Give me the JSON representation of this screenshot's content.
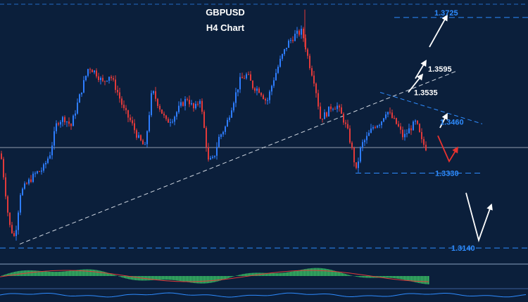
{
  "colors": {
    "background": "#0b1f3b",
    "bull_candle": "#2e7dff",
    "bear_candle": "#e23a3a",
    "level_line": "#2e8cff",
    "trendline": "#cfd6e0",
    "arrow_up_white": "#ffffff",
    "arrow_down_red": "#e8322f",
    "histogram_green": "#3fd46a"
  },
  "chart_data": {
    "type": "candlestick",
    "title": "GBPUSD",
    "subtitle": "H4 Chart",
    "ylim": [
      1.311,
      1.3755
    ],
    "levels": [
      {
        "label": "1.3725",
        "value": 1.3725,
        "style": "blue"
      },
      {
        "label": "1.3595",
        "value": 1.3595,
        "style": "white"
      },
      {
        "label": "1.3535",
        "value": 1.3535,
        "style": "white"
      },
      {
        "label": "1.3460",
        "value": 1.346,
        "style": "blue"
      },
      {
        "label": "1.3330",
        "value": 1.333,
        "style": "blue"
      },
      {
        "label": "1.3140",
        "value": 1.314,
        "style": "blue"
      }
    ],
    "current_price": 1.3395,
    "price_path": [
      [
        0,
        1.338
      ],
      [
        5,
        1.331
      ],
      [
        12,
        1.32
      ],
      [
        20,
        1.3165
      ],
      [
        28,
        1.328
      ],
      [
        38,
        1.3305
      ],
      [
        50,
        1.333
      ],
      [
        60,
        1.334
      ],
      [
        70,
        1.338
      ],
      [
        80,
        1.346
      ],
      [
        90,
        1.347
      ],
      [
        100,
        1.345
      ],
      [
        108,
        1.35
      ],
      [
        118,
        1.356
      ],
      [
        125,
        1.36
      ],
      [
        135,
        1.3585
      ],
      [
        145,
        1.356
      ],
      [
        155,
        1.358
      ],
      [
        165,
        1.354
      ],
      [
        175,
        1.349
      ],
      [
        185,
        1.346
      ],
      [
        195,
        1.342
      ],
      [
        205,
        1.3395
      ],
      [
        215,
        1.354
      ],
      [
        225,
        1.35
      ],
      [
        235,
        1.346
      ],
      [
        245,
        1.347
      ],
      [
        255,
        1.35
      ],
      [
        265,
        1.352
      ],
      [
        275,
        1.349
      ],
      [
        283,
        1.352
      ],
      [
        290,
        1.343
      ],
      [
        295,
        1.336
      ],
      [
        302,
        1.3365
      ],
      [
        310,
        1.342
      ],
      [
        320,
        1.345
      ],
      [
        330,
        1.351
      ],
      [
        340,
        1.3565
      ],
      [
        350,
        1.358
      ],
      [
        358,
        1.355
      ],
      [
        368,
        1.354
      ],
      [
        378,
        1.351
      ],
      [
        388,
        1.357
      ],
      [
        398,
        1.362
      ],
      [
        408,
        1.366
      ],
      [
        418,
        1.368
      ],
      [
        428,
        1.369
      ],
      [
        438,
        1.361
      ],
      [
        446,
        1.356
      ],
      [
        454,
        1.347
      ],
      [
        462,
        1.348
      ],
      [
        470,
        1.35
      ],
      [
        478,
        1.35
      ],
      [
        486,
        1.347
      ],
      [
        494,
        1.343
      ],
      [
        500,
        1.338
      ],
      [
        505,
        1.3335
      ],
      [
        512,
        1.34
      ],
      [
        520,
        1.342
      ],
      [
        530,
        1.345
      ],
      [
        540,
        1.346
      ],
      [
        548,
        1.349
      ],
      [
        556,
        1.347
      ],
      [
        564,
        1.345
      ],
      [
        572,
        1.342
      ],
      [
        580,
        1.344
      ],
      [
        590,
        1.346
      ],
      [
        598,
        1.341
      ],
      [
        606,
        1.339
      ]
    ],
    "forecast_paths": [
      {
        "color": "red",
        "points": [
          [
            622,
            1.3425
          ],
          [
            638,
            1.336
          ],
          [
            650,
            1.3395
          ]
        ]
      },
      {
        "color": "white",
        "points": [
          [
            662,
            1.328
          ],
          [
            680,
            1.316
          ],
          [
            698,
            1.325
          ]
        ]
      },
      {
        "color": "white",
        "points": [
          [
            625,
            1.3445
          ],
          [
            635,
            1.348
          ]
        ]
      },
      {
        "color": "white",
        "points": [
          [
            580,
            1.3535
          ],
          [
            600,
            1.358
          ]
        ]
      },
      {
        "color": "white",
        "points": [
          [
            590,
            1.357
          ],
          [
            605,
            1.3615
          ]
        ]
      },
      {
        "color": "white",
        "points": [
          [
            610,
            1.365
          ],
          [
            635,
            1.373
          ]
        ]
      }
    ],
    "trendlines": [
      {
        "points": [
          [
            28,
            1.315
          ],
          [
            650,
            1.359
          ]
        ]
      },
      {
        "points": [
          [
            540,
            1.3535
          ],
          [
            685,
            1.3455
          ]
        ]
      }
    ]
  }
}
